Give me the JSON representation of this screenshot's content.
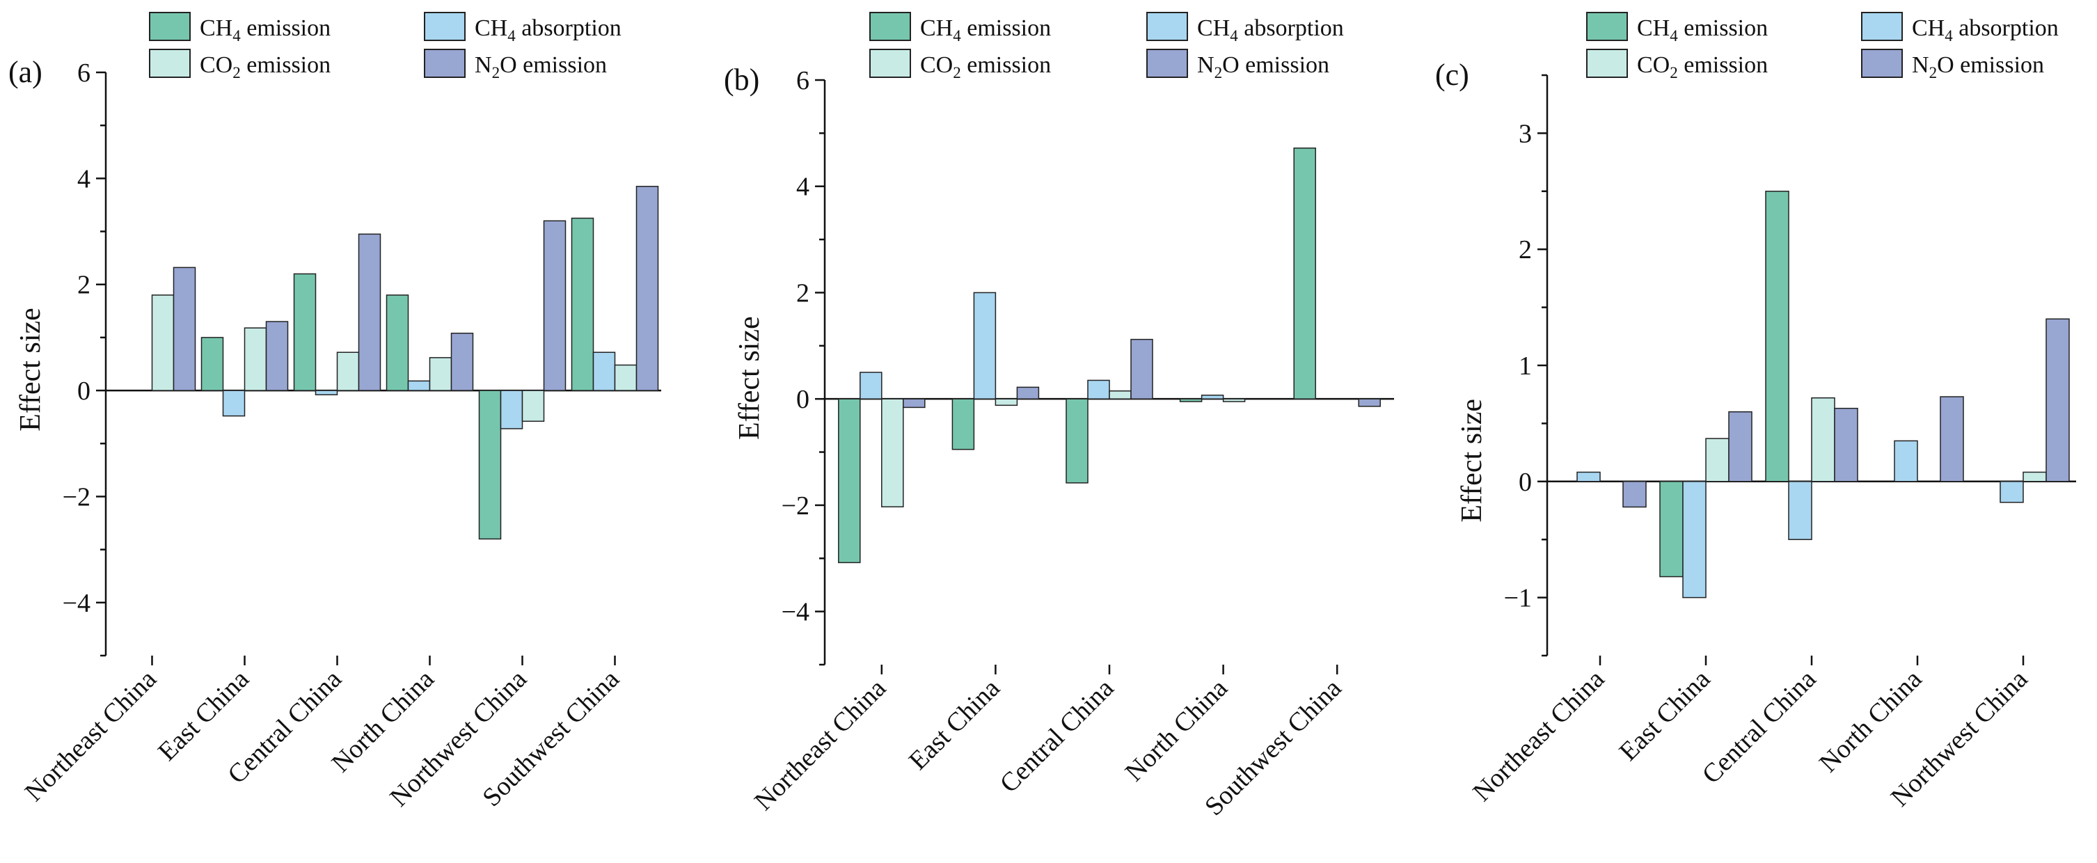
{
  "colors": {
    "ch4_emission": "#76c6ad",
    "ch4_absorption": "#a9d6f1",
    "co2_emission": "#c8ebe6",
    "n2o_emission": "#98a6d2",
    "outline": "#222222"
  },
  "legend": [
    {
      "key": "ch4_emission",
      "pre": "CH",
      "sub": "4",
      "post": " emission"
    },
    {
      "key": "ch4_absorption",
      "pre": "CH",
      "sub": "4",
      "post": " absorption"
    },
    {
      "key": "co2_emission",
      "pre": "CO",
      "sub": "2",
      "post": " emission"
    },
    {
      "key": "n2o_emission",
      "pre": "N",
      "sub": "2",
      "post": "O emission"
    }
  ],
  "chart_data": [
    {
      "type": "bar",
      "panel_label": "(a)",
      "ylabel": "Effect size",
      "ylim": [
        -5,
        6
      ],
      "yticks": [
        -4,
        -2,
        0,
        2,
        4,
        6
      ],
      "yticklabels": [
        "−4",
        "−2",
        "0",
        "2",
        "4",
        "6"
      ],
      "categories": [
        "Northeast China",
        "East China",
        "Central China",
        "North China",
        "Northwest China",
        "Southwest China"
      ],
      "series": [
        {
          "key": "ch4_emission",
          "name": "CH4 emission",
          "values": [
            null,
            1.0,
            2.2,
            1.8,
            -2.8,
            3.25
          ]
        },
        {
          "key": "ch4_absorption",
          "name": "CH4 absorption",
          "values": [
            null,
            -0.48,
            -0.08,
            0.18,
            -0.72,
            0.72
          ]
        },
        {
          "key": "co2_emission",
          "name": "CO2 emission",
          "values": [
            1.8,
            1.18,
            0.72,
            0.62,
            -0.58,
            0.48
          ]
        },
        {
          "key": "n2o_emission",
          "name": "N2O emission",
          "values": [
            2.32,
            1.3,
            2.95,
            1.08,
            3.2,
            3.85
          ]
        }
      ]
    },
    {
      "type": "bar",
      "panel_label": "(b)",
      "ylabel": "Effect size",
      "ylim": [
        -5,
        6
      ],
      "yticks": [
        -4,
        -2,
        0,
        2,
        4,
        6
      ],
      "yticklabels": [
        "−4",
        "−2",
        "0",
        "2",
        "4",
        "6"
      ],
      "categories": [
        "Northeast China",
        "East China",
        "Central China",
        "North China",
        "Southwest China"
      ],
      "series": [
        {
          "key": "ch4_emission",
          "name": "CH4 emission",
          "values": [
            -3.08,
            -0.95,
            -1.58,
            -0.05,
            4.72
          ]
        },
        {
          "key": "ch4_absorption",
          "name": "CH4 absorption",
          "values": [
            0.5,
            2.0,
            0.35,
            0.07,
            null
          ]
        },
        {
          "key": "co2_emission",
          "name": "CO2 emission",
          "values": [
            -2.03,
            -0.12,
            0.15,
            -0.05,
            null
          ]
        },
        {
          "key": "n2o_emission",
          "name": "N2O emission",
          "values": [
            -0.16,
            0.22,
            1.12,
            null,
            -0.14
          ]
        }
      ]
    },
    {
      "type": "bar",
      "panel_label": "(c)",
      "ylabel": "Effect size",
      "ylim": [
        -1.5,
        3.5
      ],
      "yticks": [
        -1,
        0,
        1,
        2,
        3
      ],
      "yticklabels": [
        "−1",
        "0",
        "1",
        "2",
        "3"
      ],
      "categories": [
        "Northeast China",
        "East China",
        "Central China",
        "North China",
        "Northwest China"
      ],
      "series": [
        {
          "key": "ch4_emission",
          "name": "CH4 emission",
          "values": [
            null,
            -0.82,
            2.5,
            null,
            null
          ]
        },
        {
          "key": "ch4_absorption",
          "name": "CH4 absorption",
          "values": [
            0.08,
            -1.0,
            -0.5,
            0.35,
            -0.18
          ]
        },
        {
          "key": "co2_emission",
          "name": "CO2 emission",
          "values": [
            null,
            0.37,
            0.72,
            null,
            0.08
          ]
        },
        {
          "key": "n2o_emission",
          "name": "N2O emission",
          "values": [
            -0.22,
            0.6,
            0.63,
            0.73,
            1.4
          ]
        }
      ]
    }
  ]
}
